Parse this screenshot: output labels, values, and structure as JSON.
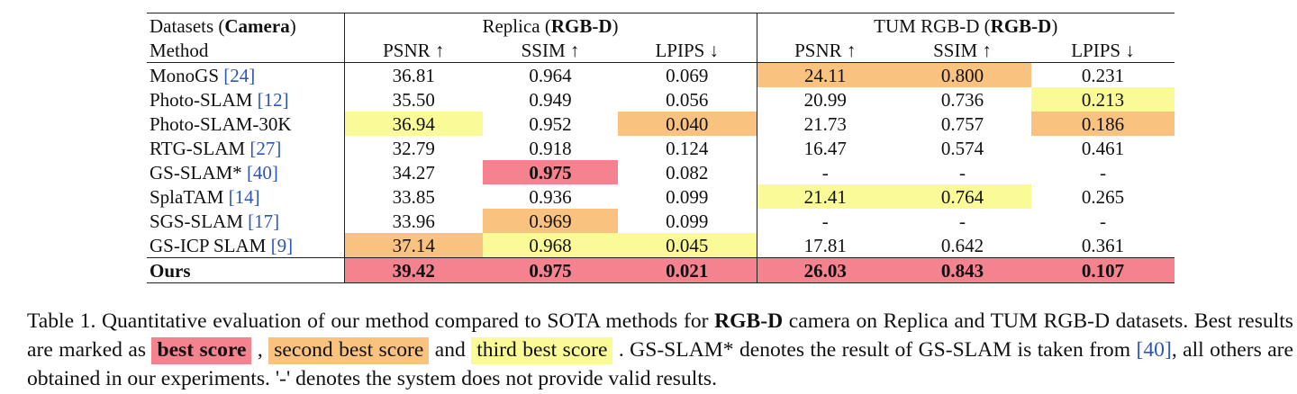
{
  "header": {
    "datasets_label": "Datasets (",
    "camera_label": "Camera",
    "close_paren": ")",
    "method_label": "Method",
    "replica_name": "Replica (",
    "replica_mode": "RGB-D",
    "tum_name": "TUM RGB-D (",
    "tum_mode": "RGB-D",
    "metrics": [
      "PSNR ↑",
      "SSIM ↑",
      "LPIPS ↓",
      "PSNR ↑",
      "SSIM ↑",
      "LPIPS ↓"
    ]
  },
  "rows": [
    {
      "name": "MonoGS ",
      "cite": "[24]",
      "vals": [
        "36.81",
        "0.964",
        "0.069",
        "24.11",
        "0.800",
        "0.231"
      ]
    },
    {
      "name": "Photo-SLAM ",
      "cite": "[12]",
      "vals": [
        "35.50",
        "0.949",
        "0.056",
        "20.99",
        "0.736",
        "0.213"
      ]
    },
    {
      "name": "Photo-SLAM-30K",
      "cite": "",
      "vals": [
        "36.94",
        "0.952",
        "0.040",
        "21.73",
        "0.757",
        "0.186"
      ]
    },
    {
      "name": "RTG-SLAM ",
      "cite": "[27]",
      "vals": [
        "32.79",
        "0.918",
        "0.124",
        "16.47",
        "0.574",
        "0.461"
      ]
    },
    {
      "name": "GS-SLAM* ",
      "cite": "[40]",
      "vals": [
        "34.27",
        "0.975",
        "0.082",
        "-",
        "-",
        "-"
      ]
    },
    {
      "name": "SplaTAM ",
      "cite": "[14]",
      "vals": [
        "33.85",
        "0.936",
        "0.099",
        "21.41",
        "0.764",
        "0.265"
      ]
    },
    {
      "name": "SGS-SLAM ",
      "cite": "[17]",
      "vals": [
        "33.96",
        "0.969",
        "0.099",
        "-",
        "-",
        "-"
      ]
    },
    {
      "name": "GS-ICP SLAM ",
      "cite": "[9]",
      "vals": [
        "37.14",
        "0.968",
        "0.045",
        "17.81",
        "0.642",
        "0.361"
      ]
    }
  ],
  "ours": {
    "name": "Ours",
    "vals": [
      "39.42",
      "0.975",
      "0.021",
      "26.03",
      "0.843",
      "0.107"
    ]
  },
  "colors": {
    "best": "#f4828f",
    "second": "#f9c27f",
    "third": "#fafa96"
  },
  "caption": {
    "t1": "Table 1. Quantitative evaluation of our method compared to SOTA methods for ",
    "b1": "RGB-D",
    "t2": " camera on Replica and TUM RGB-D datasets. Best results are marked as ",
    "best_chip": "best score",
    "t3": " , ",
    "second_chip": "second best score",
    "t4": " and ",
    "third_chip": "third best score",
    "t5": " . GS-SLAM* denotes the result of GS-SLAM is taken from ",
    "cite": "[40]",
    "t6": ", all others are obtained in our experiments. '-' denotes the system does not provide valid results."
  }
}
